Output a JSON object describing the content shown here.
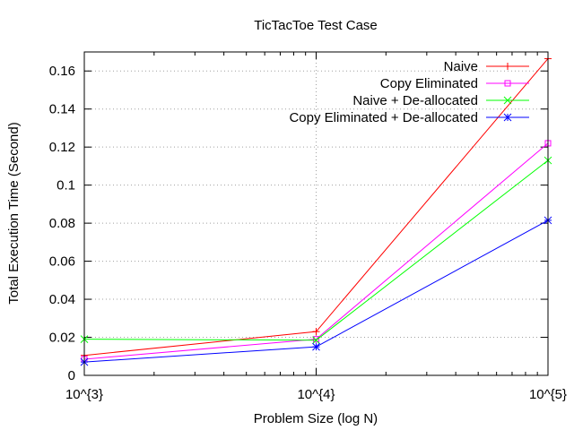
{
  "chart_data": {
    "type": "line",
    "title": "TicTacToe Test Case",
    "xlabel": "Problem Size (log N)",
    "ylabel": "Total Execution Time (Second)",
    "xscale": "log",
    "xlim": [
      1000,
      100000
    ],
    "ylim": [
      0,
      0.17
    ],
    "x_ticks": [
      1000,
      10000,
      100000
    ],
    "x_tick_labels": [
      "10^{3}",
      "10^{4}",
      "10^{5}"
    ],
    "y_ticks": [
      0,
      0.02,
      0.04,
      0.06,
      0.08,
      0.1,
      0.12,
      0.14,
      0.16
    ],
    "y_tick_labels": [
      "0",
      "0.02",
      "0.04",
      "0.06",
      "0.08",
      "0.1",
      "0.12",
      "0.14",
      "0.16"
    ],
    "grid": true,
    "legend_position": "top-right",
    "x": [
      1000,
      10000,
      100000
    ],
    "series": [
      {
        "name": "Naive",
        "values": [
          0.0105,
          0.023,
          0.1665
        ],
        "color": "#ff0000",
        "marker": "plus"
      },
      {
        "name": "Copy Eliminated",
        "values": [
          0.0085,
          0.019,
          0.122
        ],
        "color": "#ff00ff",
        "marker": "square"
      },
      {
        "name": "Naive + De-allocated",
        "values": [
          0.019,
          0.0185,
          0.113
        ],
        "color": "#00ff00",
        "marker": "cross"
      },
      {
        "name": "Copy Eliminated + De-allocated",
        "values": [
          0.007,
          0.015,
          0.0815
        ],
        "color": "#0000ff",
        "marker": "star"
      }
    ]
  }
}
